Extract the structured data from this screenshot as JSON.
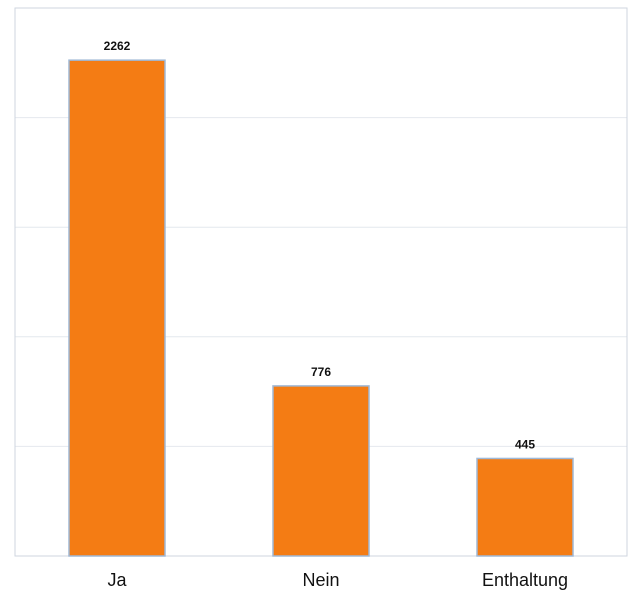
{
  "chart_data": {
    "type": "bar",
    "categories": [
      "Ja",
      "Nein",
      "Enthaltung"
    ],
    "values": [
      2262,
      776,
      445
    ],
    "ylim": [
      0,
      2500
    ],
    "grid": true,
    "title": "",
    "xlabel": "",
    "ylabel": "",
    "colors": {
      "bar_fill": "#f47c14",
      "bar_stroke": "#9fb8d6",
      "grid": "#e4e8ee",
      "frame": "#cfd6df",
      "text": "#111111"
    }
  }
}
